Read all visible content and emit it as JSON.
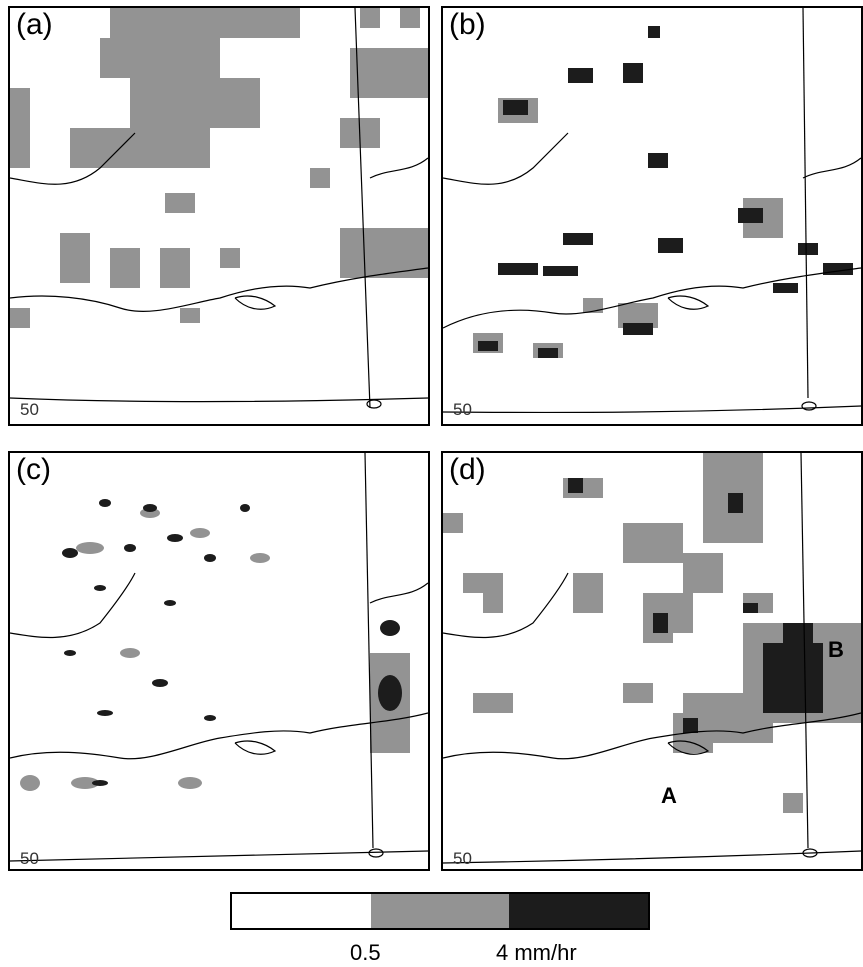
{
  "panels": [
    {
      "id": "a",
      "label": "(a)",
      "lat_label": "50"
    },
    {
      "id": "b",
      "label": "(b)",
      "lat_label": "50"
    },
    {
      "id": "c",
      "label": "(c)",
      "lat_label": "50"
    },
    {
      "id": "d",
      "label": "(d)",
      "lat_label": "50",
      "markers": [
        "A",
        "B"
      ]
    }
  ],
  "legend": {
    "colors": [
      "#ffffff",
      "#939393",
      "#1c1c1c"
    ],
    "thresholds": [
      "0.5",
      "4 mm/hr"
    ]
  }
}
